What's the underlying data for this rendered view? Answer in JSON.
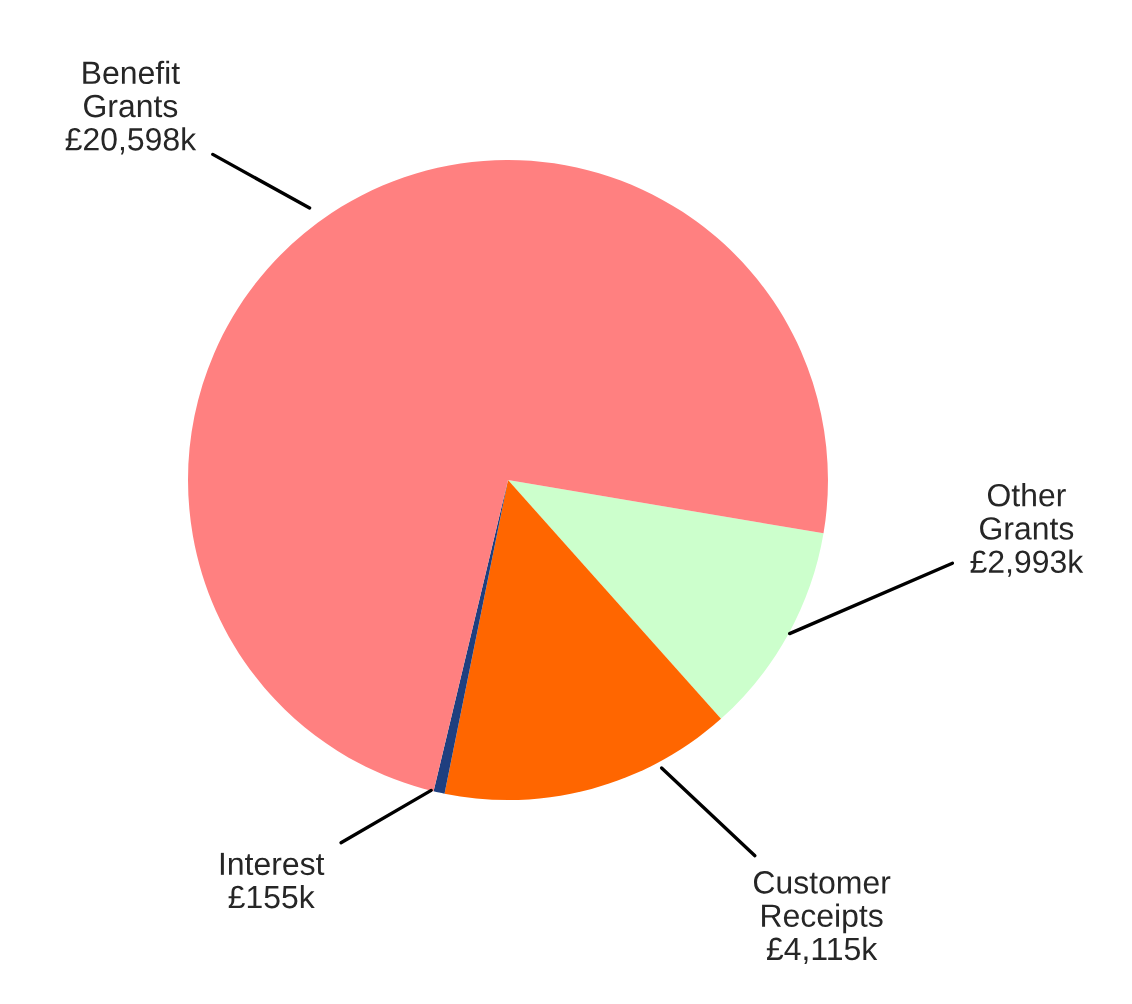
{
  "chart_data": {
    "type": "pie",
    "categories": [
      "Other Grants",
      "Customer Receipts",
      "Interest",
      "Benefit Grants"
    ],
    "values": [
      2993,
      4115,
      155,
      20598
    ],
    "value_labels": [
      "£2,993k",
      "£4,115k",
      "£155k",
      "£20,598k"
    ],
    "colors": [
      "#ccffcc",
      "#ff6600",
      "#1f3f7f",
      "#ff8080"
    ],
    "legend": false
  }
}
